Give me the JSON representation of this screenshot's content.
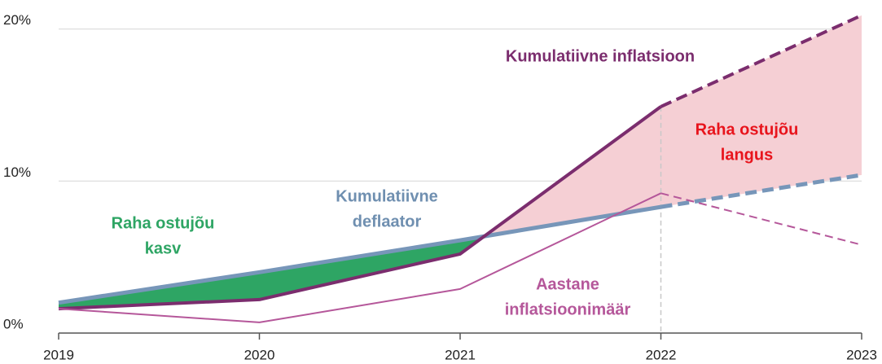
{
  "chart_data": {
    "type": "line",
    "x": [
      2019,
      2020,
      2021,
      2022,
      2023
    ],
    "xlim": [
      2019,
      2023
    ],
    "xticks": [
      2019,
      2020,
      2021,
      2022,
      2023
    ],
    "ylim": [
      0,
      21
    ],
    "yticks": [
      {
        "value": 0,
        "label": "0%"
      },
      {
        "value": 10,
        "label": "10%"
      },
      {
        "value": 20,
        "label": "20%"
      }
    ],
    "grid": true,
    "projection_start": 2022,
    "series": [
      {
        "name": "Kumulatiivne deflaator",
        "color": "#7796b9",
        "values": [
          2.0,
          4.0,
          6.1,
          8.3,
          10.4
        ]
      },
      {
        "name": "Kumulatiivne inflatsioon",
        "color": "#7b2d6e",
        "values": [
          1.6,
          2.2,
          5.2,
          14.9,
          20.9
        ]
      },
      {
        "name": "Aastane inflatsioonimäär",
        "color": "#b5579a",
        "values": [
          1.6,
          0.7,
          2.9,
          9.2,
          5.8
        ]
      }
    ],
    "gain_color": "#2ea564",
    "loss_color": "#f5cfd4",
    "annotations": [
      {
        "text": [
          "Raha ostujõu",
          "kasv"
        ],
        "color": "#2ea564"
      },
      {
        "text": [
          "Kumulatiivne",
          "deflaator"
        ],
        "color": "#6f8fb0"
      },
      {
        "text": [
          "Kumulatiivne inflatsioon"
        ],
        "color": "#7b2d6e"
      },
      {
        "text": [
          "Raha ostujõu",
          "langus"
        ],
        "color": "#e8141c"
      },
      {
        "text": [
          "Aastane",
          "inflatsioonimäär"
        ],
        "color": "#b5579a"
      }
    ]
  }
}
